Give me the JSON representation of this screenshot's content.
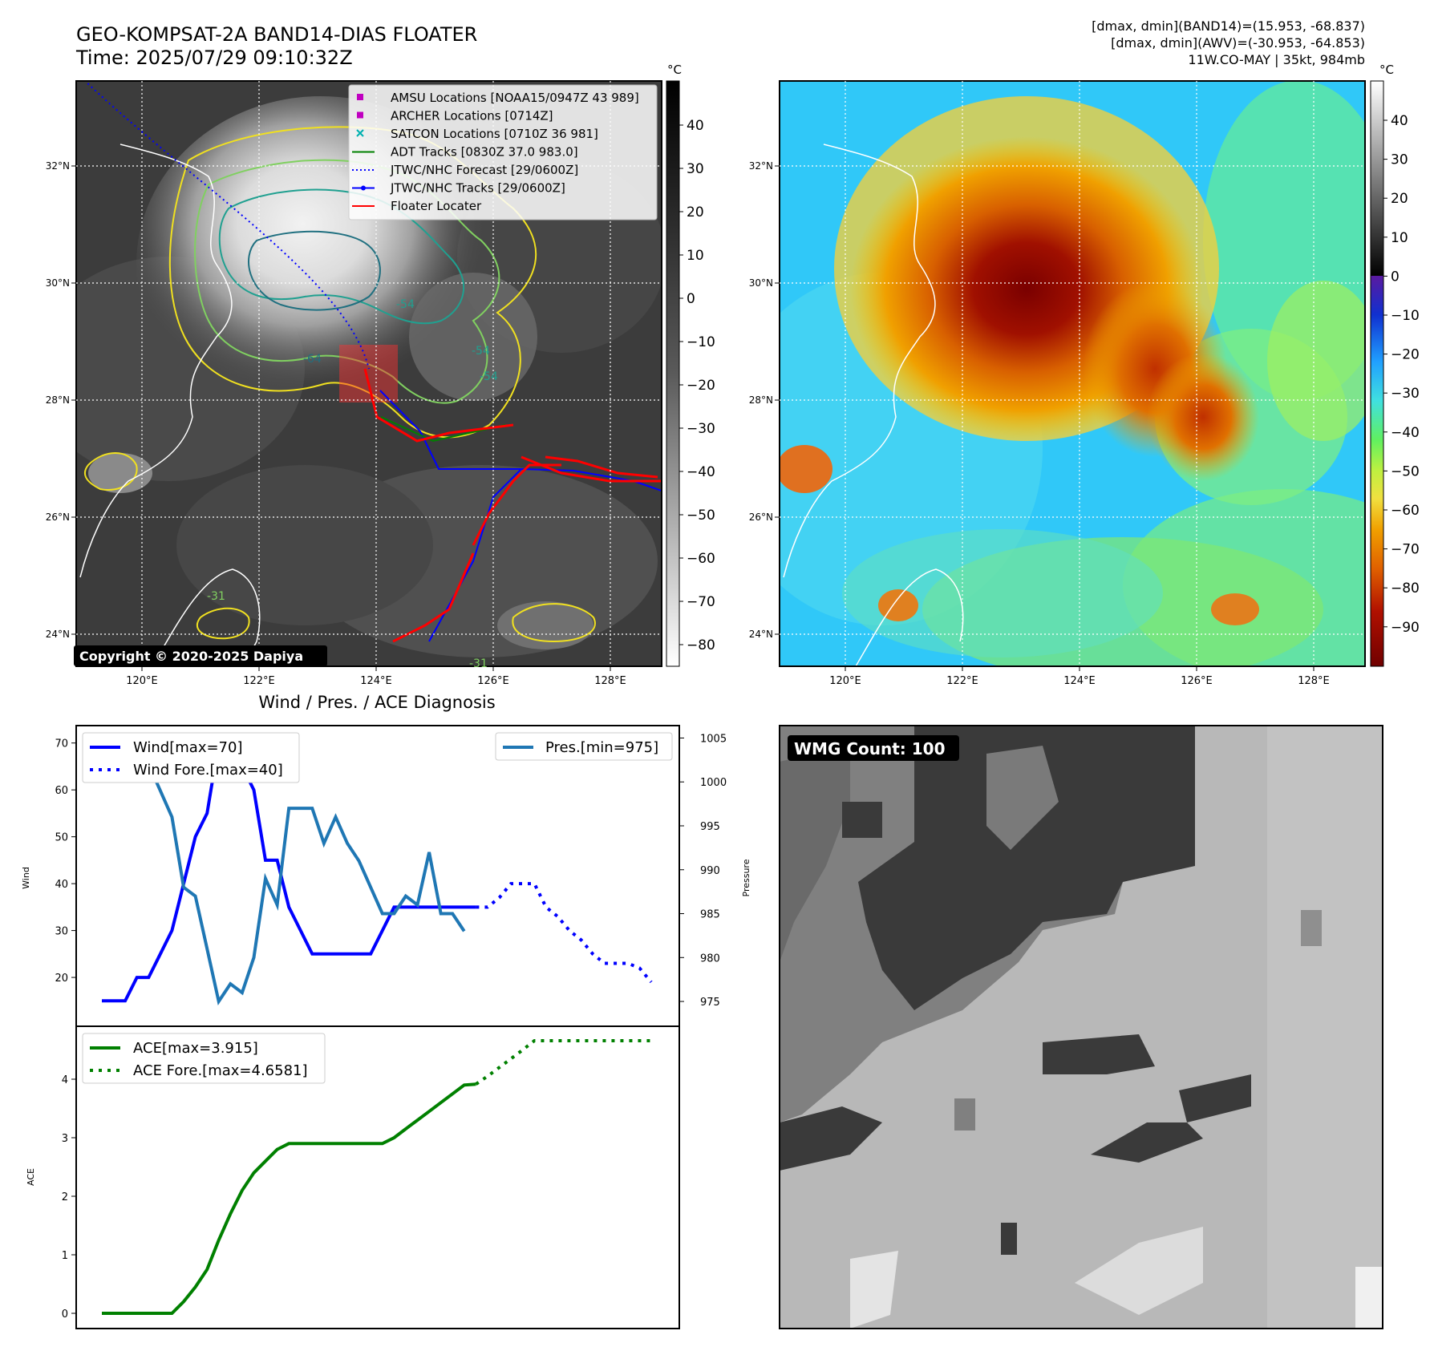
{
  "header": {
    "title": "GEO-KOMPSAT-2A BAND14-DIAS FLOATER",
    "time": "Time: 2025/07/29 09:10:32Z",
    "info_lines": [
      "[dmax, dmin](BAND14)=(15.953, -68.837)",
      "[dmax, dmin](AWV)=(-30.953, -64.853)",
      "11W.CO-MAY | 35kt, 984mb"
    ]
  },
  "map": {
    "lon_ticks": [
      "120°E",
      "122°E",
      "124°E",
      "126°E",
      "128°E"
    ],
    "lat_ticks": [
      "32°N",
      "30°N",
      "28°N",
      "26°N",
      "24°N"
    ],
    "copyright": "Copyright © 2020-2025 Dapiya",
    "legend": [
      {
        "label": "AMSU Locations [NOAA15/0947Z 43 989]",
        "color": "#c000c0",
        "marker": "square"
      },
      {
        "label": "ARCHER Locations [0714Z]",
        "color": "#c000c0",
        "marker": "square"
      },
      {
        "label": "SATCON Locations [0710Z 36 981]",
        "color": "#00b0b0",
        "marker": "x"
      },
      {
        "label": "ADT Tracks [0830Z 37.0 983.0]",
        "color": "#008000",
        "marker": "line"
      },
      {
        "label": "JTWC/NHC Forecast [29/0600Z]",
        "color": "#0000ff",
        "marker": "dotted"
      },
      {
        "label": "JTWC/NHC Tracks [29/0600Z]",
        "color": "#0000ff",
        "marker": "line-dot"
      },
      {
        "label": "Floater Locater",
        "color": "#ff0000",
        "marker": "line"
      }
    ],
    "contour_labels": [
      "-54",
      "-54",
      "-64",
      "-54",
      "-31",
      "-31"
    ],
    "colorbar_unit": "°C",
    "gray_colorbar_ticks": [
      "40",
      "30",
      "20",
      "10",
      "0",
      "−10",
      "−20",
      "−30",
      "−40",
      "−50",
      "−60",
      "−70",
      "−80"
    ],
    "color_colorbar_ticks": [
      "40",
      "30",
      "20",
      "10",
      "0",
      "−10",
      "−20",
      "−30",
      "−40",
      "−50",
      "−60",
      "−70",
      "−80",
      "−90"
    ]
  },
  "bottom_left_title": "Wind / Pres. / ACE Diagnosis",
  "wmg_label": "WMG Count: 100",
  "chart_data": [
    {
      "type": "line",
      "name": "wind-pressure",
      "x": [
        0,
        1,
        2,
        3,
        4,
        5,
        6,
        7,
        8,
        9,
        10,
        11,
        12,
        13,
        14,
        15,
        16,
        17,
        18,
        19,
        20,
        21,
        22,
        23,
        24,
        25,
        26,
        27,
        28,
        29,
        30,
        31,
        32,
        33,
        34,
        35,
        36,
        37,
        38,
        39,
        40,
        41,
        42,
        43,
        44,
        45,
        46,
        47
      ],
      "series": [
        {
          "name": "Wind[max=70]",
          "axis": "left",
          "style": "solid",
          "color": "#0000ff",
          "values": [
            15,
            15,
            15,
            20,
            20,
            25,
            30,
            40,
            50,
            55,
            70,
            65,
            65,
            60,
            45,
            45,
            35,
            30,
            25,
            25,
            25,
            25,
            25,
            25,
            30,
            35,
            35,
            35,
            35,
            35,
            35,
            35,
            35,
            null,
            null,
            null,
            null,
            null,
            null,
            null,
            null,
            null,
            null,
            null,
            null,
            null,
            null,
            null
          ]
        },
        {
          "name": "Wind Fore.[max=40]",
          "axis": "left",
          "style": "dotted",
          "color": "#0000ff",
          "values": [
            null,
            null,
            null,
            null,
            null,
            null,
            null,
            null,
            null,
            null,
            null,
            null,
            null,
            null,
            null,
            null,
            null,
            null,
            null,
            null,
            null,
            null,
            null,
            null,
            null,
            null,
            null,
            null,
            null,
            null,
            null,
            null,
            35,
            35,
            37,
            40,
            40,
            40,
            35,
            33,
            30,
            28,
            25,
            23,
            23,
            23,
            22,
            19
          ]
        },
        {
          "name": "Pres.[min=975]",
          "axis": "right",
          "style": "solid",
          "color": "#1f77b4",
          "values": [
            1004,
            1004,
            1004,
            1004,
            1002,
            999,
            996,
            988,
            987,
            981,
            975,
            977,
            976,
            980,
            989,
            986,
            997,
            997,
            997,
            993,
            996,
            993,
            991,
            988,
            985,
            985,
            987,
            986,
            992,
            985,
            985,
            983,
            null,
            null,
            null,
            null,
            null,
            null,
            null,
            null,
            null,
            null,
            null,
            null,
            null,
            null,
            null,
            null
          ]
        }
      ],
      "ylabel": "Wind",
      "y2label": "Pressure",
      "y_ticks": [
        20,
        30,
        40,
        50,
        60,
        70
      ],
      "ylim": [
        13,
        72
      ],
      "y2_ticks": [
        975,
        980,
        985,
        990,
        995,
        1000,
        1005
      ],
      "y2lim": [
        974,
        1005.5
      ],
      "legend_left": "upper left",
      "legend_right": "upper right"
    },
    {
      "type": "line",
      "name": "ace",
      "x": [
        0,
        1,
        2,
        3,
        4,
        5,
        6,
        7,
        8,
        9,
        10,
        11,
        12,
        13,
        14,
        15,
        16,
        17,
        18,
        19,
        20,
        21,
        22,
        23,
        24,
        25,
        26,
        27,
        28,
        29,
        30,
        31,
        32,
        33,
        34,
        35,
        36,
        37,
        38,
        39,
        40,
        41,
        42,
        43,
        44,
        45,
        46,
        47
      ],
      "series": [
        {
          "name": "ACE[max=3.915]",
          "style": "solid",
          "color": "#008000",
          "values": [
            0,
            0,
            0,
            0,
            0,
            0,
            0,
            0.2,
            0.45,
            0.75,
            1.25,
            1.7,
            2.1,
            2.4,
            2.6,
            2.8,
            2.9,
            2.9,
            2.9,
            2.9,
            2.9,
            2.9,
            2.9,
            2.9,
            2.9,
            3.0,
            3.15,
            3.3,
            3.45,
            3.6,
            3.75,
            3.9,
            3.915,
            null,
            null,
            null,
            null,
            null,
            null,
            null,
            null,
            null,
            null,
            null,
            null,
            null,
            null,
            null
          ]
        },
        {
          "name": "ACE Fore.[max=4.6581]",
          "style": "dotted",
          "color": "#008000",
          "values": [
            null,
            null,
            null,
            null,
            null,
            null,
            null,
            null,
            null,
            null,
            null,
            null,
            null,
            null,
            null,
            null,
            null,
            null,
            null,
            null,
            null,
            null,
            null,
            null,
            null,
            null,
            null,
            null,
            null,
            null,
            null,
            null,
            3.915,
            4.05,
            4.2,
            4.35,
            4.5,
            4.6581,
            4.6581,
            4.6581,
            4.6581,
            4.6581,
            4.6581,
            4.6581,
            4.6581,
            4.6581,
            4.6581,
            4.6581
          ]
        }
      ],
      "ylabel": "ACE",
      "y_ticks": [
        0,
        1,
        2,
        3,
        4
      ],
      "ylim": [
        -0.1,
        4.9
      ],
      "legend": "upper left"
    }
  ]
}
